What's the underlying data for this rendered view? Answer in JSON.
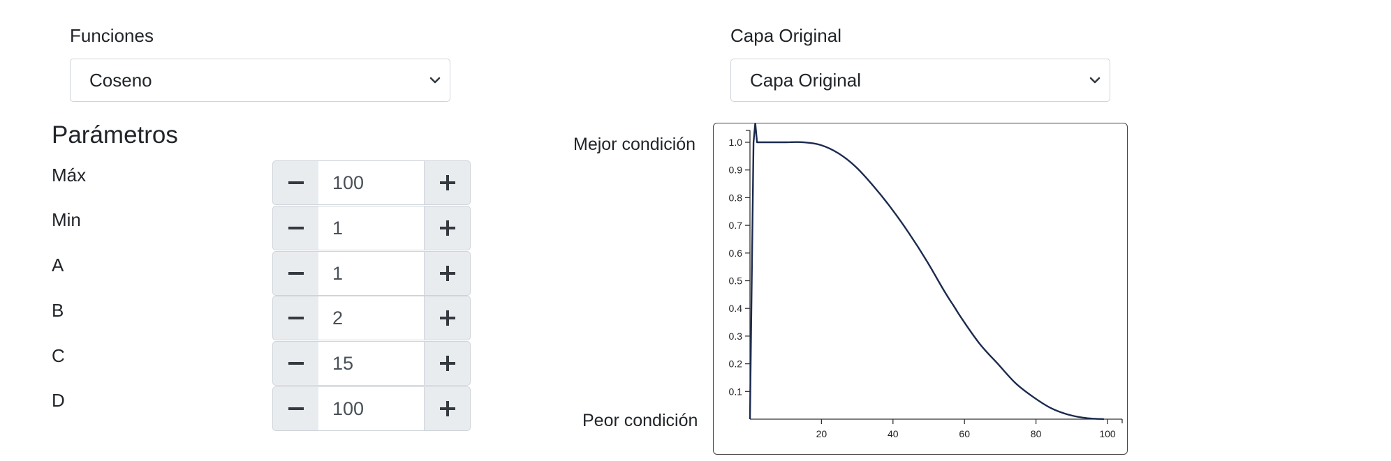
{
  "funciones": {
    "label": "Funciones",
    "selected": "Coseno"
  },
  "capa": {
    "label": "Capa Original",
    "selected": "Capa Original"
  },
  "parametros": {
    "title": "Parámetros",
    "items": [
      {
        "label": "Máx",
        "value": "100"
      },
      {
        "label": "Min",
        "value": "1"
      },
      {
        "label": "A",
        "value": "1"
      },
      {
        "label": "B",
        "value": "2"
      },
      {
        "label": "C",
        "value": "15"
      },
      {
        "label": "D",
        "value": "100"
      }
    ]
  },
  "chart": {
    "best_label": "Mejor condición",
    "worst_label": "Peor condición"
  },
  "icons": {
    "minus": "minus-icon",
    "plus": "plus-icon",
    "dropdown": "chevron-down-icon"
  },
  "chart_data": {
    "type": "line",
    "xlim": [
      0,
      100
    ],
    "ylim": [
      0,
      1.05
    ],
    "xticks": [
      20,
      40,
      60,
      80,
      100
    ],
    "yticks": [
      0.1,
      0.2,
      0.3,
      0.4,
      0.5,
      0.6,
      0.7,
      0.8,
      0.9,
      1.0
    ],
    "x": [
      0,
      1,
      1.5,
      2,
      5,
      10,
      15,
      20,
      25,
      30,
      35,
      40,
      45,
      50,
      55,
      57.5,
      60,
      65,
      70,
      75,
      80,
      85,
      90,
      95,
      100
    ],
    "y": [
      0,
      1.0,
      1.07,
      1.0,
      1.0,
      1.0,
      1.0,
      0.99,
      0.96,
      0.91,
      0.84,
      0.76,
      0.67,
      0.57,
      0.46,
      0.41,
      0.36,
      0.27,
      0.2,
      0.13,
      0.08,
      0.04,
      0.016,
      0.004,
      0
    ],
    "grid": false
  }
}
